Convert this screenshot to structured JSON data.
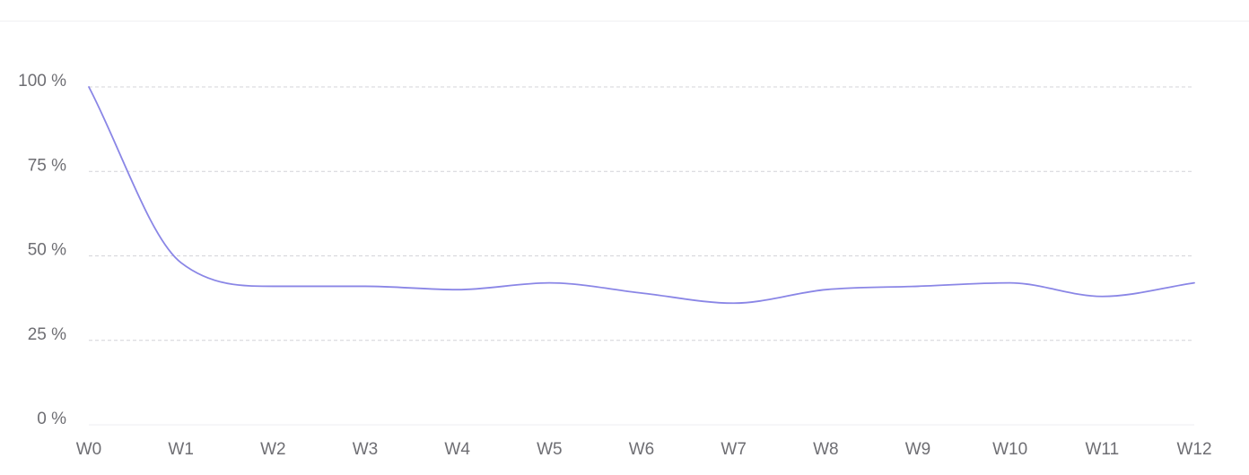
{
  "chart_data": {
    "type": "line",
    "title": "",
    "xlabel": "",
    "ylabel": "",
    "categories": [
      "W0",
      "W1",
      "W2",
      "W3",
      "W4",
      "W5",
      "W6",
      "W7",
      "W8",
      "W9",
      "W10",
      "W11",
      "W12"
    ],
    "yticks": [
      "0 %",
      "25 %",
      "50 %",
      "75 %",
      "100 %"
    ],
    "ylim": [
      0,
      100
    ],
    "grid": true,
    "series": [
      {
        "values": [
          100,
          48,
          41,
          41,
          40,
          42,
          39,
          36,
          40,
          41,
          42,
          38,
          42
        ],
        "color": "#8a86e6"
      }
    ],
    "colors": {
      "grid": "#d4d4d8",
      "baseline": "#ededf0",
      "tick_text": "#6e6e73"
    }
  }
}
